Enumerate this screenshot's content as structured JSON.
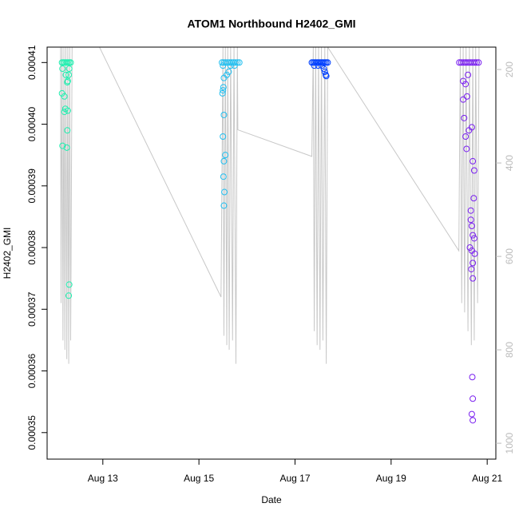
{
  "chart_data": {
    "type": "scatter",
    "title": "ATOM1 Northbound H2402_GMI",
    "xlabel": "Date",
    "ylabel": "H2402_GMI",
    "xlim": [
      11.84,
      21.18
    ],
    "xticks": [
      {
        "value": 13,
        "label": "Aug 13"
      },
      {
        "value": 15,
        "label": "Aug 15"
      },
      {
        "value": 17,
        "label": "Aug 17"
      },
      {
        "value": 19,
        "label": "Aug 19"
      },
      {
        "value": 21,
        "label": "Aug 21"
      }
    ],
    "ylim": [
      0.0003457,
      0.0004125
    ],
    "yticks": [
      {
        "value": 0.00035,
        "label": "0.00035"
      },
      {
        "value": 0.00036,
        "label": "0.00036"
      },
      {
        "value": 0.00037,
        "label": "0.00037"
      },
      {
        "value": 0.00038,
        "label": "0.00038"
      },
      {
        "value": 0.00039,
        "label": "0.00039"
      },
      {
        "value": 0.0004,
        "label": "0.00040"
      },
      {
        "value": 0.00041,
        "label": "0.00041"
      }
    ],
    "y2lim": [
      1034,
      152
    ],
    "y2ticks": [
      200,
      400,
      600,
      800,
      1000
    ],
    "series": [
      {
        "type": "line",
        "axis": "y2",
        "color": "#c8c8c8",
        "x": [
          12.12,
          12.13,
          12.15,
          12.17,
          12.19,
          12.21,
          12.23,
          12.25,
          12.27,
          12.29,
          12.31,
          12.33,
          12.36,
          12.93,
          15.46,
          15.5,
          15.52,
          15.55,
          15.58,
          15.6,
          15.63,
          15.66,
          15.7,
          15.73,
          15.77,
          15.8,
          15.81,
          17.35,
          17.38,
          17.4,
          17.43,
          17.46,
          17.49,
          17.52,
          17.55,
          17.58,
          17.62,
          17.65,
          17.68,
          20.41,
          20.44,
          20.47,
          20.5,
          20.53,
          20.56,
          20.6,
          20.63,
          20.67,
          20.7,
          20.73,
          20.76,
          20.8,
          20.83
        ],
        "values": [
          152,
          700,
          152,
          780,
          152,
          800,
          152,
          820,
          152,
          830,
          152,
          780,
          152,
          152,
          687,
          152,
          770,
          152,
          790,
          152,
          800,
          152,
          780,
          152,
          830,
          152,
          329,
          386,
          152,
          760,
          152,
          790,
          152,
          800,
          152,
          780,
          152,
          830,
          152,
          588,
          152,
          700,
          152,
          720,
          152,
          760,
          152,
          790,
          152,
          780,
          152,
          700,
          152
        ]
      },
      {
        "color": "#20f0b0",
        "x": [
          12.15,
          12.18,
          12.21,
          12.24,
          12.27,
          12.3,
          12.33,
          12.16,
          12.29,
          12.27,
          12.26,
          12.15,
          12.2,
          12.22,
          12.2,
          12.27,
          12.26,
          12.16,
          12.25,
          12.3,
          12.29,
          12.3,
          12.23
        ],
        "values": [
          0.00041,
          0.00041,
          0.00041,
          0.00041,
          0.00041,
          0.00041,
          0.00041,
          0.000409,
          0.000408,
          0.000407,
          0.0004068,
          0.000405,
          0.0004045,
          0.0004025,
          0.000402,
          0.0004022,
          0.000399,
          0.0003965,
          0.0003962,
          0.000374,
          0.0003722,
          0.000409,
          0.000408
        ]
      },
      {
        "color": "#22bff0",
        "x": [
          15.48,
          15.52,
          15.56,
          15.6,
          15.64,
          15.68,
          15.72,
          15.76,
          15.8,
          15.84,
          15.5,
          15.66,
          15.74,
          15.52,
          15.5,
          15.55,
          15.52,
          15.51,
          15.53,
          15.52,
          15.49,
          15.5,
          15.51,
          15.52,
          15.58,
          15.62
        ],
        "values": [
          0.00041,
          0.00041,
          0.00041,
          0.00041,
          0.00041,
          0.00041,
          0.00041,
          0.00041,
          0.00041,
          0.00041,
          0.0004095,
          0.0004095,
          0.0004095,
          0.0004015,
          0.000398,
          0.000395,
          0.000394,
          0.0003915,
          0.000389,
          0.0003868,
          0.000405,
          0.0004055,
          0.000406,
          0.0004075,
          0.000408,
          0.0004085
        ]
      },
      {
        "color": "#0040ff",
        "x": [
          17.35,
          17.38,
          17.41,
          17.44,
          17.47,
          17.5,
          17.53,
          17.56,
          17.59,
          17.62,
          17.65,
          17.68,
          17.4,
          17.48,
          17.56,
          17.6,
          17.62,
          17.64,
          17.65
        ],
        "values": [
          0.00041,
          0.00041,
          0.00041,
          0.00041,
          0.00041,
          0.00041,
          0.00041,
          0.00041,
          0.00041,
          0.00041,
          0.00041,
          0.00041,
          0.0004095,
          0.0004095,
          0.0004095,
          0.000409,
          0.0004085,
          0.000408,
          0.0004078
        ]
      },
      {
        "color": "#7a20f0",
        "x": [
          20.42,
          20.46,
          20.5,
          20.54,
          20.58,
          20.62,
          20.66,
          20.7,
          20.74,
          20.78,
          20.82,
          20.5,
          20.52,
          20.55,
          20.57,
          20.62,
          20.68,
          20.7,
          20.73,
          20.72,
          20.66,
          20.68,
          20.66,
          20.7,
          20.73,
          20.64,
          20.68,
          20.74,
          20.7,
          20.67,
          20.7,
          20.69,
          20.7,
          20.68,
          20.7,
          20.6,
          20.55,
          20.5,
          20.58
        ],
        "values": [
          0.00041,
          0.00041,
          0.00041,
          0.00041,
          0.00041,
          0.00041,
          0.00041,
          0.00041,
          0.00041,
          0.00041,
          0.00041,
          0.000404,
          0.000401,
          0.000398,
          0.000396,
          0.000399,
          0.0003995,
          0.000394,
          0.0003925,
          0.000388,
          0.000386,
          0.0003835,
          0.0003845,
          0.000382,
          0.0003815,
          0.00038,
          0.0003795,
          0.000379,
          0.0003775,
          0.0003765,
          0.000375,
          0.000359,
          0.0003555,
          0.000353,
          0.000352,
          0.000408,
          0.0004065,
          0.000407,
          0.0004045
        ]
      }
    ]
  }
}
